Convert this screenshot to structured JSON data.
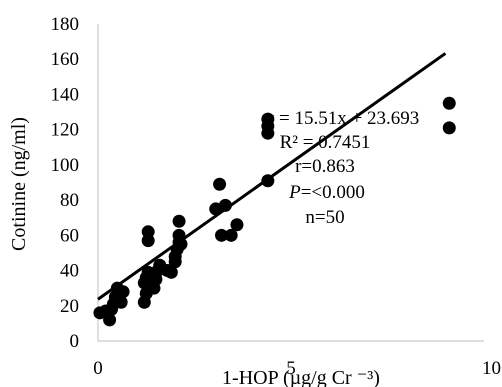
{
  "chart_data": {
    "type": "scatter",
    "title": "",
    "xlabel": "1-HOP (µg/g Cr ⁻³)",
    "ylabel": "Cotinine (ng/ml)",
    "xlim": [
      0,
      10
    ],
    "ylim": [
      0,
      180
    ],
    "x_ticks": [
      "0",
      "5",
      "10"
    ],
    "y_ticks": [
      "0",
      "20",
      "40",
      "60",
      "80",
      "100",
      "120",
      "140",
      "160",
      "180"
    ],
    "grid": false,
    "legend": "none",
    "series": [
      {
        "marker_color": "#000000",
        "points": [
          {
            "x": 0.05,
            "y": 16
          },
          {
            "x": 0.2,
            "y": 17
          },
          {
            "x": 0.3,
            "y": 12
          },
          {
            "x": 0.35,
            "y": 18
          },
          {
            "x": 0.4,
            "y": 21
          },
          {
            "x": 0.45,
            "y": 25
          },
          {
            "x": 0.5,
            "y": 30
          },
          {
            "x": 0.55,
            "y": 23
          },
          {
            "x": 0.6,
            "y": 22
          },
          {
            "x": 0.65,
            "y": 28
          },
          {
            "x": 1.2,
            "y": 22
          },
          {
            "x": 1.25,
            "y": 27
          },
          {
            "x": 1.2,
            "y": 33
          },
          {
            "x": 1.25,
            "y": 36
          },
          {
            "x": 1.3,
            "y": 39
          },
          {
            "x": 1.35,
            "y": 34
          },
          {
            "x": 1.3,
            "y": 57
          },
          {
            "x": 1.3,
            "y": 62
          },
          {
            "x": 1.4,
            "y": 38
          },
          {
            "x": 1.45,
            "y": 30
          },
          {
            "x": 1.5,
            "y": 35
          },
          {
            "x": 1.55,
            "y": 40
          },
          {
            "x": 1.6,
            "y": 43
          },
          {
            "x": 1.8,
            "y": 40
          },
          {
            "x": 1.9,
            "y": 39
          },
          {
            "x": 2.0,
            "y": 45
          },
          {
            "x": 2.0,
            "y": 48
          },
          {
            "x": 2.05,
            "y": 52
          },
          {
            "x": 2.1,
            "y": 56
          },
          {
            "x": 2.1,
            "y": 60
          },
          {
            "x": 2.1,
            "y": 68
          },
          {
            "x": 2.15,
            "y": 55
          },
          {
            "x": 3.05,
            "y": 75
          },
          {
            "x": 3.15,
            "y": 89
          },
          {
            "x": 3.2,
            "y": 60
          },
          {
            "x": 3.3,
            "y": 77
          },
          {
            "x": 3.45,
            "y": 60
          },
          {
            "x": 3.6,
            "y": 66
          },
          {
            "x": 4.4,
            "y": 91
          },
          {
            "x": 4.4,
            "y": 118
          },
          {
            "x": 4.4,
            "y": 122
          },
          {
            "x": 4.4,
            "y": 126
          },
          {
            "x": 9.1,
            "y": 121
          },
          {
            "x": 9.1,
            "y": 135
          }
        ]
      }
    ],
    "trendline": {
      "slope": 15.51,
      "intercept": 23.693,
      "x_range": [
        0,
        9.0
      ],
      "color": "#000000"
    },
    "annotations": [
      "y = 15.51x + 23.693",
      "R² = 0.7451",
      "r=0.863",
      "P=<0.000",
      "n=50"
    ]
  }
}
